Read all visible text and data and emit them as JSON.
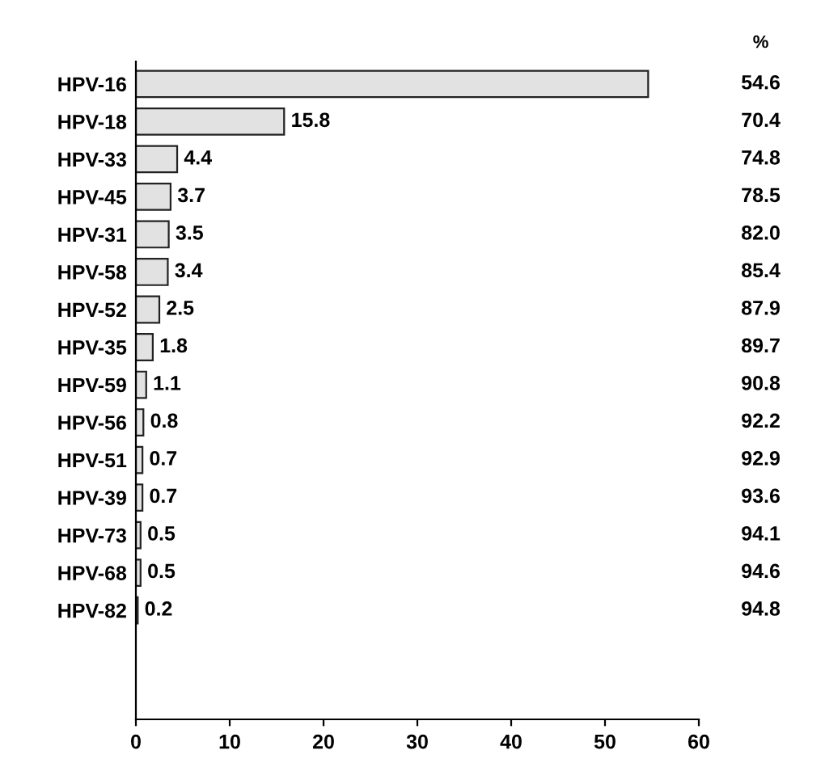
{
  "chart_data": {
    "type": "bar",
    "orientation": "horizontal",
    "categories": [
      "HPV-16",
      "HPV-18",
      "HPV-33",
      "HPV-45",
      "HPV-31",
      "HPV-58",
      "HPV-52",
      "HPV-35",
      "HPV-59",
      "HPV-56",
      "HPV-51",
      "HPV-39",
      "HPV-73",
      "HPV-68",
      "HPV-82"
    ],
    "values": [
      54.6,
      15.8,
      4.4,
      3.7,
      3.5,
      3.4,
      2.5,
      1.8,
      1.1,
      0.8,
      0.7,
      0.7,
      0.5,
      0.5,
      0.2
    ],
    "value_labels": [
      null,
      "15.8",
      "4.4",
      "3.7",
      "3.5",
      "3.4",
      "2.5",
      "1.8",
      "1.1",
      "0.8",
      "0.7",
      "0.7",
      "0.5",
      "0.5",
      "0.2"
    ],
    "color": "#e2e2e2",
    "xlim": [
      0,
      60
    ],
    "xticks": [
      0,
      10,
      20,
      30,
      40,
      50,
      60
    ],
    "grid": false,
    "annotations": [
      "%",
      "54.6",
      "70.4",
      "74.8",
      "78.5",
      "82.0",
      "85.4",
      "87.9",
      "89.7",
      "90.8",
      "92.2",
      "92.9",
      "93.6",
      "94.1",
      "94.6",
      "94.8"
    ]
  }
}
